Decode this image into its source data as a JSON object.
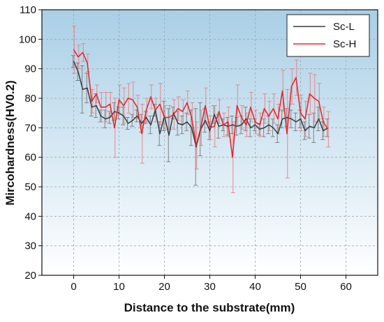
{
  "chart_data": {
    "type": "line",
    "xlabel": "Distance to the substrate(mm)",
    "ylabel": "Mircohardness(HV0.2)",
    "xlim": [
      -7,
      67
    ],
    "ylim": [
      20,
      110
    ],
    "xticks": [
      0,
      10,
      20,
      30,
      40,
      50,
      60
    ],
    "yticks": [
      20,
      30,
      40,
      50,
      60,
      70,
      80,
      90,
      100,
      110
    ],
    "grid": true,
    "legend_position": "top-right",
    "background_gradient": [
      "#a9cfe6",
      "#ffffff"
    ],
    "x": [
      0,
      1,
      2,
      3,
      4,
      5,
      6,
      7,
      8,
      9,
      10,
      11,
      12,
      13,
      14,
      15,
      16,
      17,
      18,
      19,
      20,
      21,
      22,
      23,
      24,
      25,
      26,
      27,
      28,
      29,
      30,
      31,
      32,
      33,
      34,
      35,
      36,
      37,
      38,
      39,
      40,
      41,
      42,
      43,
      44,
      45,
      46,
      47,
      48,
      49,
      50,
      51,
      52,
      53,
      54,
      55,
      56
    ],
    "series": [
      {
        "name": "Sc-L",
        "color": "#3a3a3a",
        "values": [
          92.5,
          89,
          83,
          83.5,
          77,
          77.5,
          74,
          73,
          73.5,
          75.5,
          75,
          74,
          71.5,
          72.5,
          74,
          71.5,
          73.5,
          71,
          76,
          68,
          74,
          67.5,
          75,
          71.5,
          71,
          72,
          70,
          63.5,
          69.5,
          72.5,
          69,
          74.5,
          70.5,
          71,
          70.5,
          71,
          70.5,
          71,
          73,
          70,
          71,
          69.5,
          70,
          71,
          70,
          68,
          73,
          73.5,
          73,
          72,
          73,
          69,
          70.5,
          70,
          73,
          69,
          70
        ],
        "errors": [
          2,
          3,
          8,
          5,
          3,
          4,
          2,
          3,
          2,
          3,
          2,
          3,
          2,
          2,
          2,
          3,
          2,
          3,
          2,
          4,
          5,
          9,
          2,
          4,
          3,
          3,
          6,
          13,
          9,
          4,
          3,
          3,
          4,
          2,
          3,
          3,
          3,
          3,
          4,
          3,
          2,
          2,
          3,
          3,
          3,
          3,
          3,
          3,
          3,
          3,
          3,
          3,
          4,
          5,
          4,
          3,
          3
        ]
      },
      {
        "name": "Sc-H",
        "color": "#e8282b",
        "values": [
          96.5,
          94,
          95.5,
          92,
          79,
          81.5,
          77,
          77,
          78,
          70,
          79.5,
          77.5,
          80,
          79.5,
          77,
          68,
          76,
          80.5,
          76,
          78,
          73.5,
          73.5,
          74.5,
          76.5,
          75.5,
          78.5,
          73.5,
          64,
          70,
          77.5,
          70,
          70.5,
          75.5,
          71,
          72,
          60,
          77.5,
          73.5,
          71,
          77,
          72,
          71,
          76.5,
          74,
          76.5,
          73,
          82.5,
          68,
          84,
          87,
          75,
          73,
          81.5,
          80,
          79,
          72,
          69.5
        ],
        "errors": [
          8,
          4,
          3,
          3,
          4,
          3,
          5,
          5,
          4,
          10,
          5,
          6,
          5,
          6,
          4,
          10,
          4,
          4,
          4,
          7,
          4,
          4,
          5,
          4,
          4,
          4,
          5,
          8,
          6,
          6,
          4,
          7,
          4,
          4,
          5,
          12,
          7,
          4,
          4,
          5,
          4,
          4,
          5,
          5,
          5,
          5,
          7,
          15,
          6,
          6,
          6,
          6,
          7,
          8,
          6,
          5,
          6
        ]
      }
    ]
  }
}
